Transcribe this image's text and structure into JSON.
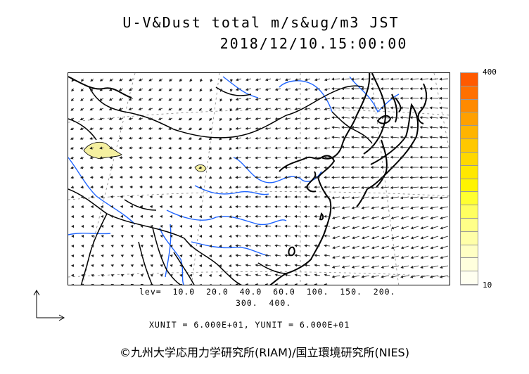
{
  "title_line1": "U-V&Dust total m/s&ug/m3 JST",
  "title_line2": "2018/12/10.15:00:00",
  "legend": {
    "max_label": "400",
    "min_label": "10",
    "colors": [
      "#ff5a00",
      "#ff7000",
      "#ff8a00",
      "#ffa000",
      "#ffb400",
      "#ffc800",
      "#ffd800",
      "#ffe800",
      "#fff400",
      "#ffff30",
      "#ffff60",
      "#ffff88",
      "#ffffa8",
      "#ffffc4",
      "#ffffdd",
      "#fffff0"
    ]
  },
  "levels_line1": "lev=  10.0  20.0  40.0  60.0  100.  150.  200.",
  "levels_line2": "300.  400.",
  "units_line": "XUNIT = 6.000E+01, YUNIT = 6.000E+01",
  "copyright": "©九州大学応用力学研究所(RIAM)/国立環境研究所(NIES)",
  "map_colors": {
    "coast": "#000000",
    "border": "#000000",
    "river": "#1e64ff",
    "grid": "#888888",
    "dust": "#f5f0a0",
    "arrow": "#222222"
  }
}
